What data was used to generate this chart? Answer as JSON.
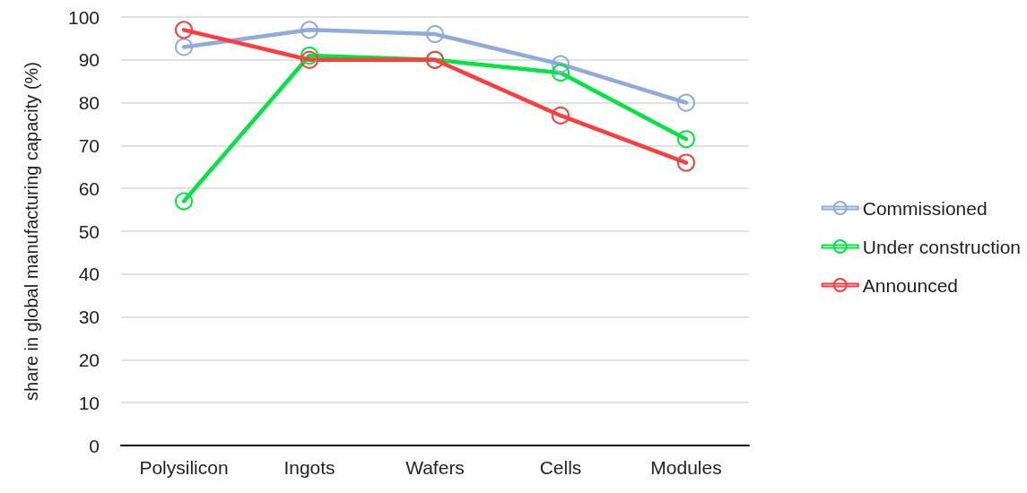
{
  "chart_data": {
    "type": "line",
    "ylabel": "share in global manufacturing capacity (%)",
    "categories": [
      "Polysilicon",
      "Ingots",
      "Wafers",
      "Cells",
      "Modules"
    ],
    "series": [
      {
        "name": "Commissioned",
        "color": "#8faadc",
        "values": [
          93,
          97,
          96,
          89,
          80
        ]
      },
      {
        "name": "Under construction",
        "color": "#00e640",
        "values": [
          57,
          91,
          90,
          87,
          71.5
        ]
      },
      {
        "name": "Announced",
        "color": "#ff3b3b",
        "values": [
          97,
          90,
          90,
          77,
          66
        ]
      }
    ],
    "ylim": [
      0,
      100
    ],
    "yticks": [
      0,
      10,
      20,
      30,
      40,
      50,
      60,
      70,
      80,
      90,
      100
    ],
    "grid": "y",
    "legend": "right",
    "marker": "circle",
    "line_style": "solid"
  }
}
